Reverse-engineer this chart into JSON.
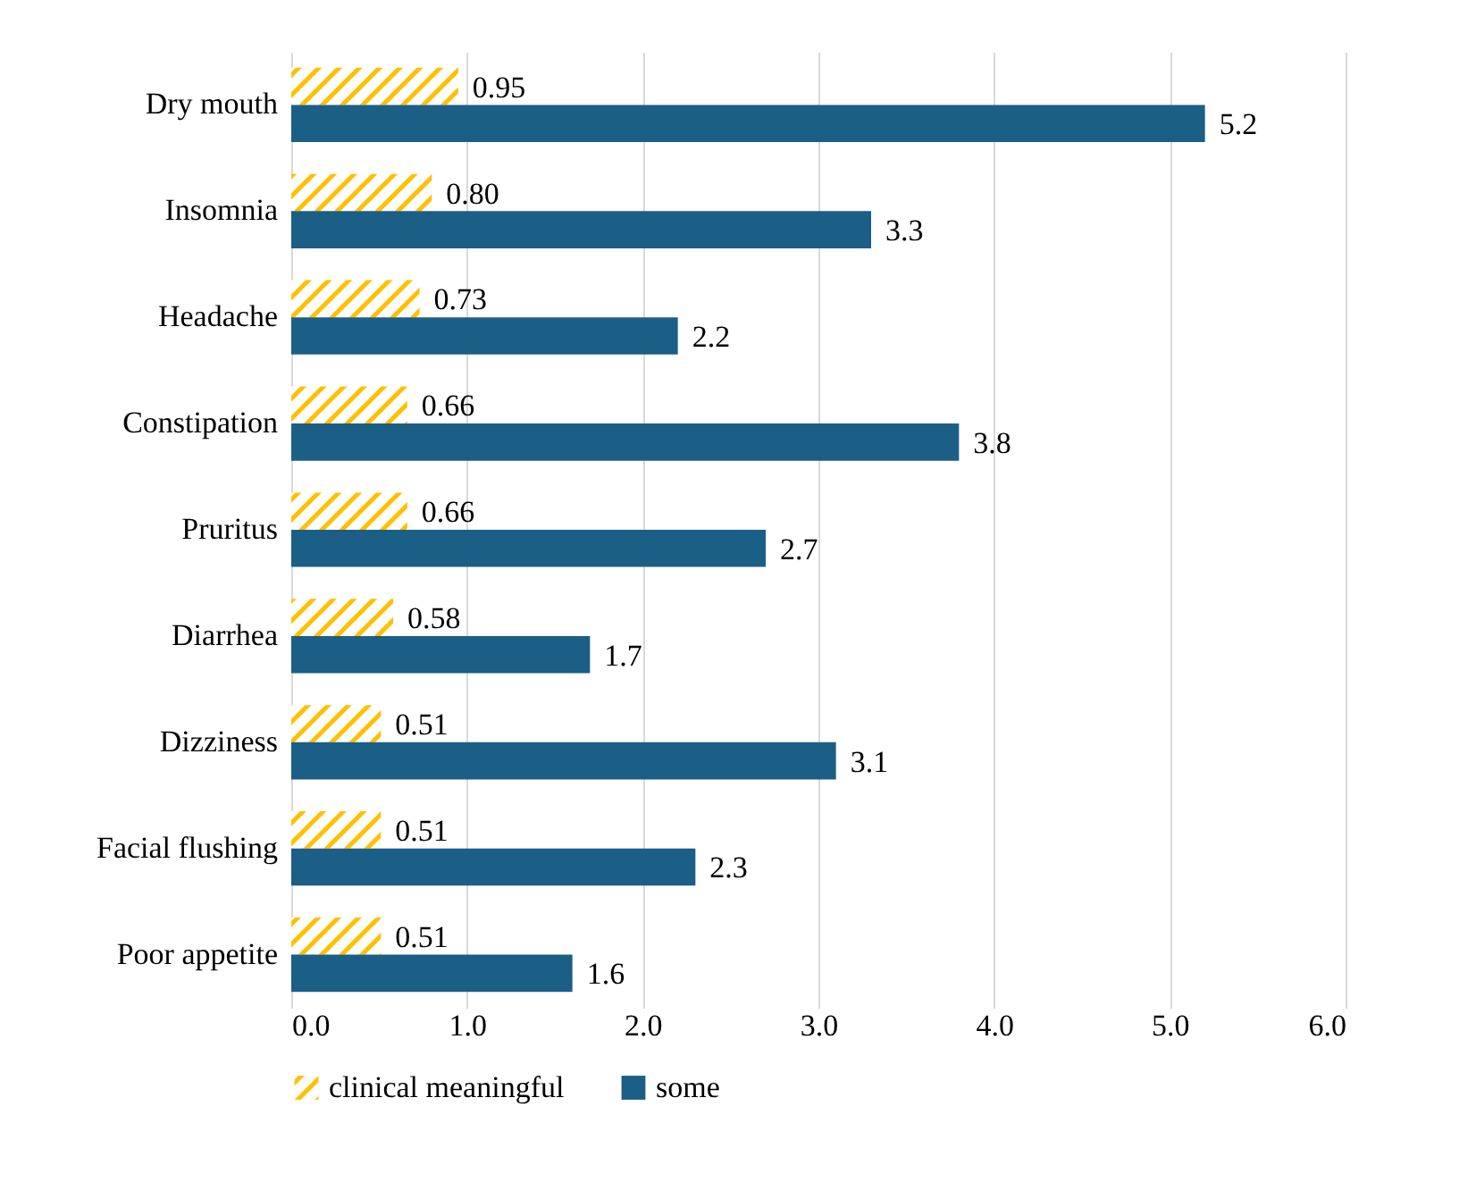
{
  "chart_data": {
    "type": "bar",
    "orientation": "horizontal",
    "categories": [
      "Dry mouth",
      "Insomnia",
      "Headache",
      "Constipation",
      "Pruritus",
      "Diarrhea",
      "Dizziness",
      "Facial flushing",
      "Poor appetite"
    ],
    "series": [
      {
        "name": "clinical meaningful",
        "color": "#ffc000",
        "values": [
          0.95,
          0.8,
          0.73,
          0.66,
          0.66,
          0.58,
          0.51,
          0.51,
          0.51
        ],
        "value_labels": [
          "0.95",
          "0.80",
          "0.73",
          "0.66",
          "0.66",
          "0.58",
          "0.51",
          "0.51",
          "0.51"
        ]
      },
      {
        "name": "some",
        "color": "#1b5e86",
        "values": [
          5.2,
          3.3,
          2.2,
          3.8,
          2.7,
          1.7,
          3.1,
          2.3,
          1.6
        ],
        "value_labels": [
          "5.2",
          "3.3",
          "2.2",
          "3.8",
          "2.7",
          "1.7",
          "3.1",
          "2.3",
          "1.6"
        ]
      }
    ],
    "xlim": [
      0,
      6
    ],
    "xticks": [
      {
        "value": 0,
        "label": "0.0"
      },
      {
        "value": 1,
        "label": "1.0"
      },
      {
        "value": 2,
        "label": "2.0"
      },
      {
        "value": 3,
        "label": "3.0"
      },
      {
        "value": 4,
        "label": "4.0"
      },
      {
        "value": 5,
        "label": "5.0"
      },
      {
        "value": 6,
        "label": "6.0"
      }
    ],
    "grid": "x",
    "legend": "bottom"
  }
}
